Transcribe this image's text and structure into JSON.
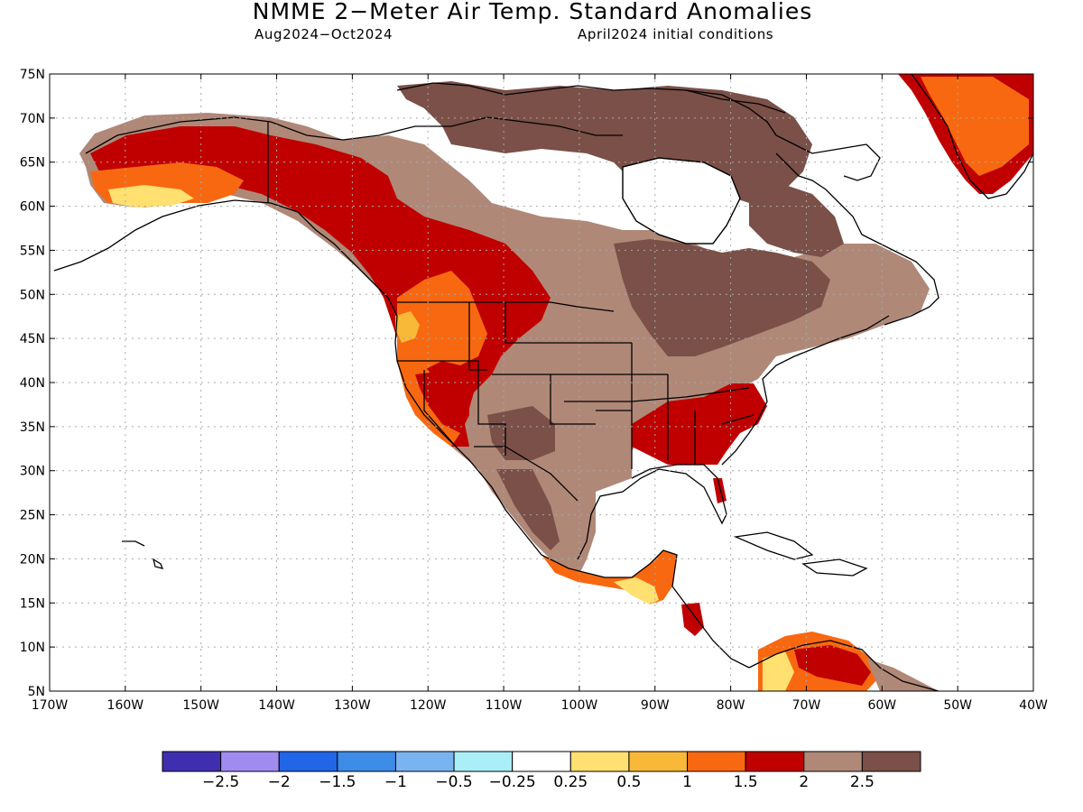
{
  "title": "NMME 2−Meter Air Temp. Standard Anomalies",
  "subtitle_left": "Aug2024−Oct2024",
  "subtitle_right": "April2024 initial conditions",
  "map": {
    "lat_range": [
      5,
      75
    ],
    "lon_range": [
      -170,
      -40
    ],
    "lat_ticks": [
      "5N",
      "10N",
      "15N",
      "20N",
      "25N",
      "30N",
      "35N",
      "40N",
      "45N",
      "50N",
      "55N",
      "60N",
      "65N",
      "70N",
      "75N"
    ],
    "lon_ticks": [
      "170W",
      "160W",
      "150W",
      "140W",
      "130W",
      "120W",
      "110W",
      "100W",
      "90W",
      "80W",
      "70W",
      "60W",
      "50W",
      "40W"
    ],
    "grid": "dotted",
    "ocean_color": "#ffffff",
    "coastline_color": "#000000",
    "regions": [
      {
        "name": "Alaska",
        "anomaly": "1.5 to 2"
      },
      {
        "name": "Western Canada",
        "anomaly": "1.5 to 2"
      },
      {
        "name": "Western United States",
        "anomaly": "0.5 to 2"
      },
      {
        "name": "Southeastern United States",
        "anomaly": "1.5 to 2"
      },
      {
        "name": "Central and Eastern Canada",
        "anomaly": "2 to above 2.5"
      },
      {
        "name": "Mexico",
        "anomaly": "2 to above 2.5"
      },
      {
        "name": "Greenland",
        "anomaly": "1 to 2"
      },
      {
        "name": "Northern South America",
        "anomaly": "0.25 to 2"
      }
    ]
  },
  "colorbar": {
    "colors": [
      "#3f2fb0",
      "#a08cf0",
      "#2266e8",
      "#3c8ce8",
      "#7ab4f0",
      "#aaeef8",
      "#ffffff",
      "#ffe070",
      "#f8b838",
      "#f86810",
      "#c00000",
      "#b08878",
      "#7a5048"
    ],
    "labels": [
      "−2.5",
      "−2",
      "−1.5",
      "−1",
      "−0.5",
      "−0.25",
      "0.25",
      "0.5",
      "1",
      "1.5",
      "2",
      "2.5"
    ]
  }
}
